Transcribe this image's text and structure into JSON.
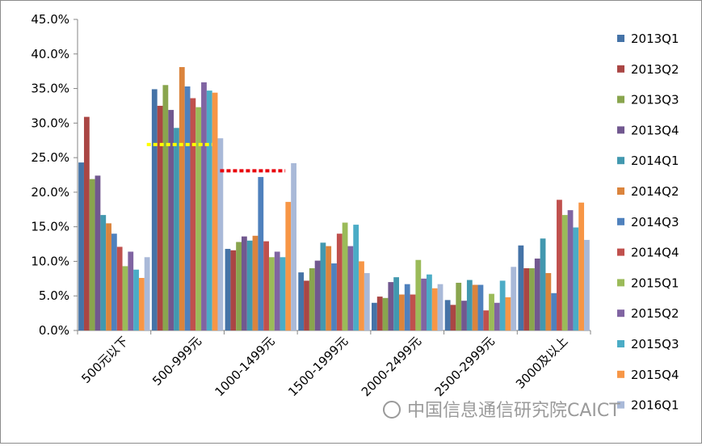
{
  "chart_data": {
    "type": "bar",
    "title": "",
    "xlabel": "",
    "ylabel": "",
    "ylim": [
      0,
      0.45
    ],
    "yticks": [
      "0.0%",
      "5.0%",
      "10.0%",
      "15.0%",
      "20.0%",
      "25.0%",
      "30.0%",
      "35.0%",
      "40.0%",
      "45.0%"
    ],
    "grid": false,
    "legend_position": "right",
    "categories": [
      "500元以下",
      "500-999元",
      "1000-1499元",
      "1500-1999元",
      "2000-2499元",
      "2500-2999元",
      "3000及以上"
    ],
    "series": [
      {
        "name": "2013Q1",
        "color": "#4573A7",
        "values": [
          0.243,
          0.349,
          0.118,
          0.084,
          0.04,
          0.044,
          0.123
        ]
      },
      {
        "name": "2013Q2",
        "color": "#AA4644",
        "values": [
          0.309,
          0.325,
          0.116,
          0.072,
          0.049,
          0.037,
          0.09
        ]
      },
      {
        "name": "2013Q3",
        "color": "#89A54E",
        "values": [
          0.219,
          0.355,
          0.128,
          0.09,
          0.047,
          0.069,
          0.09
        ]
      },
      {
        "name": "2013Q4",
        "color": "#71588F",
        "values": [
          0.224,
          0.319,
          0.136,
          0.101,
          0.07,
          0.043,
          0.104
        ]
      },
      {
        "name": "2014Q1",
        "color": "#4298AF",
        "values": [
          0.167,
          0.293,
          0.13,
          0.127,
          0.077,
          0.073,
          0.133
        ]
      },
      {
        "name": "2014Q2",
        "color": "#DB843D",
        "values": [
          0.155,
          0.381,
          0.137,
          0.122,
          0.052,
          0.066,
          0.083
        ]
      },
      {
        "name": "2014Q3",
        "color": "#4F81BD",
        "values": [
          0.14,
          0.353,
          0.222,
          0.097,
          0.067,
          0.066,
          0.054
        ]
      },
      {
        "name": "2014Q4",
        "color": "#C0504D",
        "values": [
          0.121,
          0.336,
          0.129,
          0.14,
          0.052,
          0.029,
          0.189
        ]
      },
      {
        "name": "2015Q1",
        "color": "#9BBB59",
        "values": [
          0.093,
          0.323,
          0.106,
          0.156,
          0.102,
          0.053,
          0.167
        ]
      },
      {
        "name": "2015Q2",
        "color": "#8064A2",
        "values": [
          0.114,
          0.359,
          0.114,
          0.122,
          0.075,
          0.04,
          0.174
        ]
      },
      {
        "name": "2015Q3",
        "color": "#4BACC6",
        "values": [
          0.088,
          0.347,
          0.106,
          0.153,
          0.081,
          0.072,
          0.149
        ]
      },
      {
        "name": "2015Q4",
        "color": "#F79646",
        "values": [
          0.076,
          0.344,
          0.186,
          0.1,
          0.061,
          0.048,
          0.185
        ]
      },
      {
        "name": "2016Q1",
        "color": "#A9B9D8",
        "values": [
          0.106,
          0.278,
          0.242,
          0.083,
          0.067,
          0.092,
          0.131
        ]
      }
    ],
    "annotations": [
      {
        "type": "dashed-line",
        "color": "#FFFF00",
        "category": "500-999元",
        "value": 0.269
      },
      {
        "type": "dashed-line",
        "color": "#E8000B",
        "category": "1000-1499元",
        "value": 0.231
      }
    ]
  },
  "watermark": "中国信息通信研究院CAICT"
}
